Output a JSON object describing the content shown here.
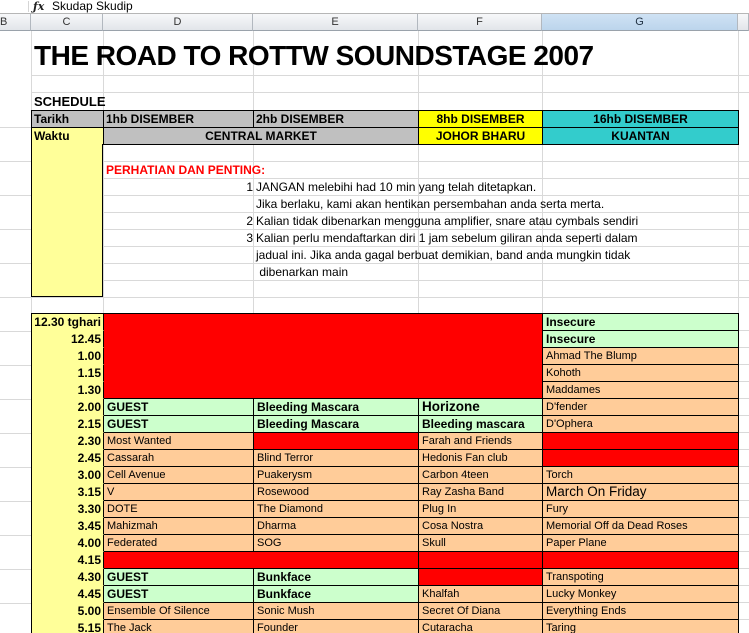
{
  "formula_bar": {
    "fx_label": "ƒx",
    "value": "Skudap Skudip"
  },
  "column_headers": [
    "B",
    "C",
    "D",
    "E",
    "F",
    "G",
    ""
  ],
  "selected_column": "G",
  "title": "THE ROAD TO ROTTW SOUNDSTAGE 2007",
  "schedule_label": "SCHEDULE",
  "colors": {
    "red": "#FF0000",
    "green": "#CCFFCC",
    "peach": "#FFCC99",
    "yellow": "#FFFF00",
    "light_yellow": "#FFFF99",
    "gray": "#C0C0C0",
    "cyan": "#33CCCC",
    "selected_header_blue": "#BCD5EC"
  },
  "header_table": {
    "row1_label": "Tarikh",
    "row2_label": "Waktu",
    "dates": [
      {
        "text": "1hb DISEMBER",
        "bg": "gray",
        "align": "left"
      },
      {
        "text": "2hb DISEMBER",
        "bg": "gray",
        "align": "left"
      },
      {
        "text": "8hb DISEMBER",
        "bg": "yellow",
        "align": "center"
      },
      {
        "text": "16hb DISEMBER",
        "bg": "cyan",
        "align": "center"
      }
    ],
    "venues": [
      {
        "text": "CENTRAL MARKET",
        "bg": "gray",
        "align": "center",
        "colspan": 2
      },
      {
        "text": "JOHOR BHARU",
        "bg": "yellow",
        "align": "center"
      },
      {
        "text": "KUANTAN",
        "bg": "cyan",
        "align": "center"
      }
    ]
  },
  "notes": {
    "heading": "PERHATIAN DAN PENTING:",
    "items": [
      {
        "num": "1",
        "text": "JANGAN melebihi had 10 min yang telah ditetapkan."
      },
      {
        "num": "",
        "text": "Jika berlaku, kami akan hentikan persembahan anda serta merta."
      },
      {
        "num": "2",
        "text": "Kalian tidak dibenarkan mengguna amplifier, snare atau cymbals sendiri"
      },
      {
        "num": "3",
        "text": "Kalian perlu mendaftarkan diri 1 jam sebelum giliran anda seperti dalam"
      },
      {
        "num": "",
        "text": "jadual ini. Jika anda gagal berbuat demikian, band anda mungkin tidak"
      },
      {
        "num": "",
        "text": " dibenarkan main"
      }
    ]
  },
  "schedule": {
    "rows": [
      {
        "time": "12.30 tghari",
        "cells": [
          {
            "text": "",
            "bg": "red",
            "colspan": 3,
            "rowspan": 5
          },
          {
            "text": "Insecure",
            "bg": "green",
            "bold": true
          }
        ]
      },
      {
        "time": "12.45",
        "cells": [
          {
            "text": "Insecure",
            "bg": "green",
            "bold": true
          }
        ]
      },
      {
        "time": "1.00",
        "cells": [
          {
            "text": "Ahmad The Blump",
            "bg": "peach"
          }
        ]
      },
      {
        "time": "1.15",
        "cells": [
          {
            "text": "Kohoth",
            "bg": "peach"
          }
        ]
      },
      {
        "time": "1.30",
        "cells": [
          {
            "text": "Maddames",
            "bg": "peach"
          }
        ]
      },
      {
        "time": "2.00",
        "cells": [
          {
            "text": "GUEST",
            "bg": "green",
            "bold": true
          },
          {
            "text": "Bleeding Mascara",
            "bg": "green",
            "bold": true
          },
          {
            "text": "Horizone",
            "bg": "green",
            "bold": true,
            "big": true
          },
          {
            "text": "D'fender",
            "bg": "peach"
          }
        ]
      },
      {
        "time": "2.15",
        "cells": [
          {
            "text": "GUEST",
            "bg": "green",
            "bold": true
          },
          {
            "text": "Bleeding Mascara",
            "bg": "green",
            "bold": true
          },
          {
            "text": "Bleeding mascara",
            "bg": "green",
            "bold": true
          },
          {
            "text": "D'Ophera",
            "bg": "peach"
          }
        ]
      },
      {
        "time": "2.30",
        "cells": [
          {
            "text": "Most Wanted",
            "bg": "peach"
          },
          {
            "text": "",
            "bg": "red"
          },
          {
            "text": "Farah and Friends",
            "bg": "peach"
          },
          {
            "text": "",
            "bg": "red"
          }
        ]
      },
      {
        "time": "2.45",
        "cells": [
          {
            "text": "Cassarah",
            "bg": "peach"
          },
          {
            "text": "Blind Terror",
            "bg": "peach"
          },
          {
            "text": "Hedonis Fan club",
            "bg": "peach"
          },
          {
            "text": "",
            "bg": "red"
          }
        ]
      },
      {
        "time": "3.00",
        "cells": [
          {
            "text": "Cell Avenue",
            "bg": "peach"
          },
          {
            "text": "Puakerysm",
            "bg": "peach"
          },
          {
            "text": "Carbon 4teen",
            "bg": "peach"
          },
          {
            "text": "Torch",
            "bg": "peach"
          }
        ]
      },
      {
        "time": "3.15",
        "cells": [
          {
            "text": "V",
            "bg": "peach"
          },
          {
            "text": "Rosewood",
            "bg": "peach"
          },
          {
            "text": "Ray Zasha Band",
            "bg": "peach"
          },
          {
            "text": "March On Friday",
            "bg": "peach",
            "big": true
          }
        ]
      },
      {
        "time": "3.30",
        "cells": [
          {
            "text": "DOTE",
            "bg": "peach"
          },
          {
            "text": "The Diamond",
            "bg": "peach"
          },
          {
            "text": "Plug In",
            "bg": "peach"
          },
          {
            "text": "Fury",
            "bg": "peach"
          }
        ]
      },
      {
        "time": "3.45",
        "cells": [
          {
            "text": "Mahizmah",
            "bg": "peach"
          },
          {
            "text": "Dharma",
            "bg": "peach"
          },
          {
            "text": "Cosa Nostra",
            "bg": "peach"
          },
          {
            "text": "Memorial Off da Dead Roses",
            "bg": "peach"
          }
        ]
      },
      {
        "time": "4.00",
        "cells": [
          {
            "text": "Federated",
            "bg": "peach"
          },
          {
            "text": "SOG",
            "bg": "peach"
          },
          {
            "text": "Skull",
            "bg": "peach"
          },
          {
            "text": "Paper Plane",
            "bg": "peach"
          }
        ]
      },
      {
        "time": "4.15",
        "cells": [
          {
            "text": "",
            "bg": "red",
            "colspan": 2
          },
          {
            "text": "",
            "bg": "red"
          },
          {
            "text": "",
            "bg": "red"
          }
        ]
      },
      {
        "time": "4.30",
        "cells": [
          {
            "text": "GUEST",
            "bg": "green",
            "bold": true
          },
          {
            "text": "Bunkface",
            "bg": "green",
            "bold": true
          },
          {
            "text": "",
            "bg": "red"
          },
          {
            "text": "Transpoting",
            "bg": "peach"
          }
        ]
      },
      {
        "time": "4.45",
        "cells": [
          {
            "text": "GUEST",
            "bg": "green",
            "bold": true
          },
          {
            "text": "Bunkface",
            "bg": "green",
            "bold": true
          },
          {
            "text": "Khalfah",
            "bg": "peach"
          },
          {
            "text": "Lucky Monkey",
            "bg": "peach"
          }
        ]
      },
      {
        "time": "5.00",
        "cells": [
          {
            "text": "Ensemble Of Silence",
            "bg": "peach"
          },
          {
            "text": "Sonic Mush",
            "bg": "peach"
          },
          {
            "text": "Secret Of Diana",
            "bg": "peach"
          },
          {
            "text": "Everything Ends",
            "bg": "peach"
          }
        ]
      },
      {
        "time": "5.15",
        "cells": [
          {
            "text": "The Jack",
            "bg": "peach"
          },
          {
            "text": "Founder",
            "bg": "peach"
          },
          {
            "text": "Cutaracha",
            "bg": "peach"
          },
          {
            "text": "Taring",
            "bg": "peach"
          }
        ]
      }
    ]
  }
}
